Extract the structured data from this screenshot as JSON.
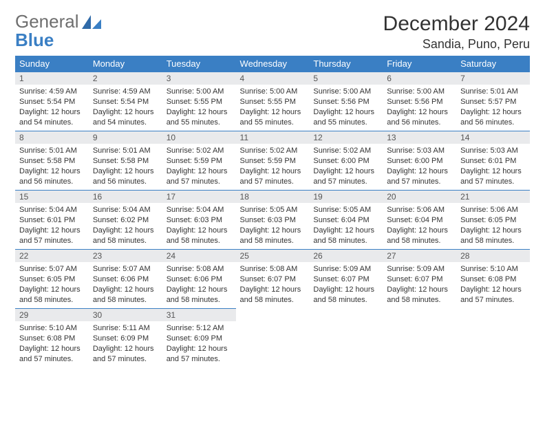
{
  "brand": {
    "word1": "General",
    "word2": "Blue"
  },
  "title": "December 2024",
  "location": "Sandia, Puno, Peru",
  "colors": {
    "header_bg": "#3a7fc4",
    "header_text": "#ffffff",
    "daynum_bg": "#e9eaec",
    "rule": "#3a7fc4",
    "body_text": "#333333",
    "logo_gray": "#6e6e6e",
    "logo_blue": "#3a7fc4"
  },
  "weekdays": [
    "Sunday",
    "Monday",
    "Tuesday",
    "Wednesday",
    "Thursday",
    "Friday",
    "Saturday"
  ],
  "days": [
    {
      "n": 1,
      "sunrise": "4:59 AM",
      "sunset": "5:54 PM",
      "dayh": 12,
      "daym": 54
    },
    {
      "n": 2,
      "sunrise": "4:59 AM",
      "sunset": "5:54 PM",
      "dayh": 12,
      "daym": 54
    },
    {
      "n": 3,
      "sunrise": "5:00 AM",
      "sunset": "5:55 PM",
      "dayh": 12,
      "daym": 55
    },
    {
      "n": 4,
      "sunrise": "5:00 AM",
      "sunset": "5:55 PM",
      "dayh": 12,
      "daym": 55
    },
    {
      "n": 5,
      "sunrise": "5:00 AM",
      "sunset": "5:56 PM",
      "dayh": 12,
      "daym": 55
    },
    {
      "n": 6,
      "sunrise": "5:00 AM",
      "sunset": "5:56 PM",
      "dayh": 12,
      "daym": 56
    },
    {
      "n": 7,
      "sunrise": "5:01 AM",
      "sunset": "5:57 PM",
      "dayh": 12,
      "daym": 56
    },
    {
      "n": 8,
      "sunrise": "5:01 AM",
      "sunset": "5:58 PM",
      "dayh": 12,
      "daym": 56
    },
    {
      "n": 9,
      "sunrise": "5:01 AM",
      "sunset": "5:58 PM",
      "dayh": 12,
      "daym": 56
    },
    {
      "n": 10,
      "sunrise": "5:02 AM",
      "sunset": "5:59 PM",
      "dayh": 12,
      "daym": 57
    },
    {
      "n": 11,
      "sunrise": "5:02 AM",
      "sunset": "5:59 PM",
      "dayh": 12,
      "daym": 57
    },
    {
      "n": 12,
      "sunrise": "5:02 AM",
      "sunset": "6:00 PM",
      "dayh": 12,
      "daym": 57
    },
    {
      "n": 13,
      "sunrise": "5:03 AM",
      "sunset": "6:00 PM",
      "dayh": 12,
      "daym": 57
    },
    {
      "n": 14,
      "sunrise": "5:03 AM",
      "sunset": "6:01 PM",
      "dayh": 12,
      "daym": 57
    },
    {
      "n": 15,
      "sunrise": "5:04 AM",
      "sunset": "6:01 PM",
      "dayh": 12,
      "daym": 57
    },
    {
      "n": 16,
      "sunrise": "5:04 AM",
      "sunset": "6:02 PM",
      "dayh": 12,
      "daym": 58
    },
    {
      "n": 17,
      "sunrise": "5:04 AM",
      "sunset": "6:03 PM",
      "dayh": 12,
      "daym": 58
    },
    {
      "n": 18,
      "sunrise": "5:05 AM",
      "sunset": "6:03 PM",
      "dayh": 12,
      "daym": 58
    },
    {
      "n": 19,
      "sunrise": "5:05 AM",
      "sunset": "6:04 PM",
      "dayh": 12,
      "daym": 58
    },
    {
      "n": 20,
      "sunrise": "5:06 AM",
      "sunset": "6:04 PM",
      "dayh": 12,
      "daym": 58
    },
    {
      "n": 21,
      "sunrise": "5:06 AM",
      "sunset": "6:05 PM",
      "dayh": 12,
      "daym": 58
    },
    {
      "n": 22,
      "sunrise": "5:07 AM",
      "sunset": "6:05 PM",
      "dayh": 12,
      "daym": 58
    },
    {
      "n": 23,
      "sunrise": "5:07 AM",
      "sunset": "6:06 PM",
      "dayh": 12,
      "daym": 58
    },
    {
      "n": 24,
      "sunrise": "5:08 AM",
      "sunset": "6:06 PM",
      "dayh": 12,
      "daym": 58
    },
    {
      "n": 25,
      "sunrise": "5:08 AM",
      "sunset": "6:07 PM",
      "dayh": 12,
      "daym": 58
    },
    {
      "n": 26,
      "sunrise": "5:09 AM",
      "sunset": "6:07 PM",
      "dayh": 12,
      "daym": 58
    },
    {
      "n": 27,
      "sunrise": "5:09 AM",
      "sunset": "6:07 PM",
      "dayh": 12,
      "daym": 58
    },
    {
      "n": 28,
      "sunrise": "5:10 AM",
      "sunset": "6:08 PM",
      "dayh": 12,
      "daym": 57
    },
    {
      "n": 29,
      "sunrise": "5:10 AM",
      "sunset": "6:08 PM",
      "dayh": 12,
      "daym": 57
    },
    {
      "n": 30,
      "sunrise": "5:11 AM",
      "sunset": "6:09 PM",
      "dayh": 12,
      "daym": 57
    },
    {
      "n": 31,
      "sunrise": "5:12 AM",
      "sunset": "6:09 PM",
      "dayh": 12,
      "daym": 57
    }
  ],
  "labels": {
    "sunrise": "Sunrise:",
    "sunset": "Sunset:",
    "daylight_prefix": "Daylight:",
    "hours_word": "hours",
    "and_word": "and",
    "minutes_word": "minutes."
  },
  "layout": {
    "first_weekday_index": 0,
    "columns": 7,
    "rows": 5
  }
}
